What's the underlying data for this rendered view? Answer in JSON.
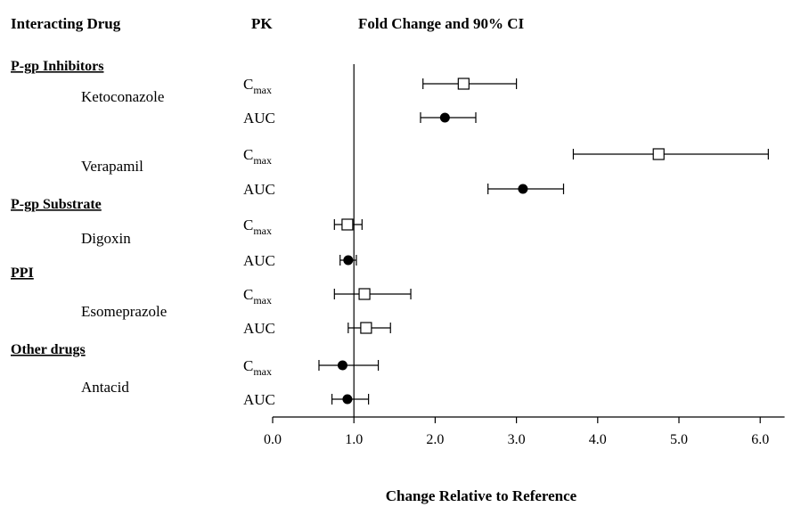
{
  "chart_data": {
    "type": "forest",
    "headers": {
      "drug": "Interacting Drug",
      "pk": "PK",
      "effect": "Fold Change and 90% CI"
    },
    "xlabel": "Change Relative to Reference",
    "xlim": [
      0.0,
      6.3
    ],
    "xticks": [
      "0.0",
      "1.0",
      "2.0",
      "3.0",
      "4.0",
      "5.0",
      "6.0"
    ],
    "reference_line": 1.0,
    "categories": [
      "P-gp Inhibitors",
      "P-gp Substrate",
      "PPI",
      "Other drugs"
    ],
    "drugs": [
      {
        "name": "Ketoconazole",
        "category": "P-gp Inhibitors"
      },
      {
        "name": "Verapamil",
        "category": "P-gp Inhibitors"
      },
      {
        "name": "Digoxin",
        "category": "P-gp Substrate"
      },
      {
        "name": "Esomeprazole",
        "category": "PPI"
      },
      {
        "name": "Antacid",
        "category": "Other drugs"
      }
    ],
    "pk_labels": {
      "cmax": {
        "main": "C",
        "sub": "max"
      },
      "auc": "AUC"
    },
    "rows": [
      {
        "drug": "Ketoconazole",
        "pk": "cmax",
        "marker": "open-square",
        "estimate": 2.35,
        "ci": [
          1.85,
          3.0
        ]
      },
      {
        "drug": "Ketoconazole",
        "pk": "auc",
        "marker": "filled-circle",
        "estimate": 2.12,
        "ci": [
          1.82,
          2.5
        ]
      },
      {
        "drug": "Verapamil",
        "pk": "cmax",
        "marker": "open-square",
        "estimate": 4.75,
        "ci": [
          3.7,
          6.1
        ]
      },
      {
        "drug": "Verapamil",
        "pk": "auc",
        "marker": "filled-circle",
        "estimate": 3.08,
        "ci": [
          2.65,
          3.58
        ]
      },
      {
        "drug": "Digoxin",
        "pk": "cmax",
        "marker": "open-square",
        "estimate": 0.92,
        "ci": [
          0.76,
          1.1
        ]
      },
      {
        "drug": "Digoxin",
        "pk": "auc",
        "marker": "filled-circle",
        "estimate": 0.93,
        "ci": [
          0.83,
          1.03
        ]
      },
      {
        "drug": "Esomeprazole",
        "pk": "cmax",
        "marker": "open-square",
        "estimate": 1.13,
        "ci": [
          0.76,
          1.7
        ]
      },
      {
        "drug": "Esomeprazole",
        "pk": "auc",
        "marker": "open-square",
        "estimate": 1.15,
        "ci": [
          0.93,
          1.45
        ]
      },
      {
        "drug": "Antacid",
        "pk": "cmax",
        "marker": "filled-circle",
        "estimate": 0.86,
        "ci": [
          0.57,
          1.3
        ]
      },
      {
        "drug": "Antacid",
        "pk": "auc",
        "marker": "filled-circle",
        "estimate": 0.92,
        "ci": [
          0.73,
          1.18
        ]
      }
    ]
  }
}
